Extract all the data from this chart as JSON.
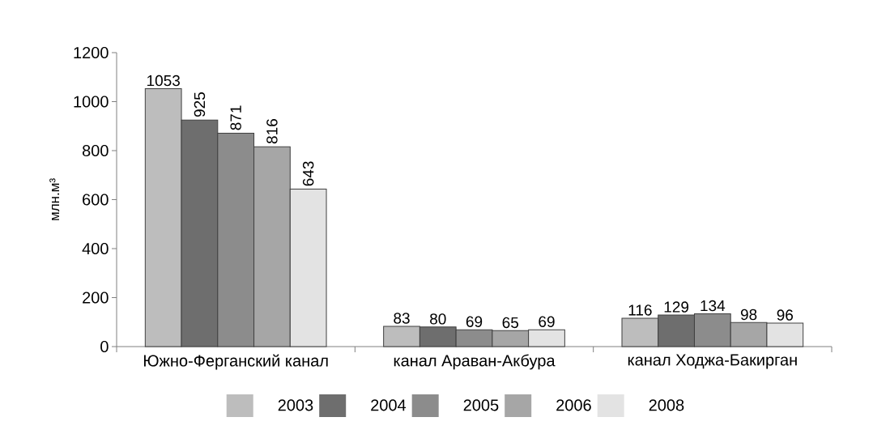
{
  "chart_data": {
    "type": "bar",
    "ylabel": "млн.м³",
    "categories": [
      "Южно-Ферганский канал",
      "канал Араван-Акбура",
      "канал Ходжа-Бакирган"
    ],
    "series": [
      {
        "name": "2003",
        "color": "#bdbdbd",
        "values": [
          1053,
          83,
          116
        ]
      },
      {
        "name": "2004",
        "color": "#6e6e6e",
        "values": [
          925,
          80,
          129
        ]
      },
      {
        "name": "2005",
        "color": "#8c8c8c",
        "values": [
          871,
          69,
          134
        ]
      },
      {
        "name": "2006",
        "color": "#a6a6a6",
        "values": [
          816,
          65,
          98
        ]
      },
      {
        "name": "2008",
        "color": "#e3e3e3",
        "values": [
          643,
          69,
          96
        ]
      }
    ],
    "ylim": [
      0,
      1200
    ],
    "yticks": [
      0,
      200,
      400,
      600,
      800,
      1000,
      1200
    ],
    "data_labels": true,
    "legend": "bottom"
  }
}
